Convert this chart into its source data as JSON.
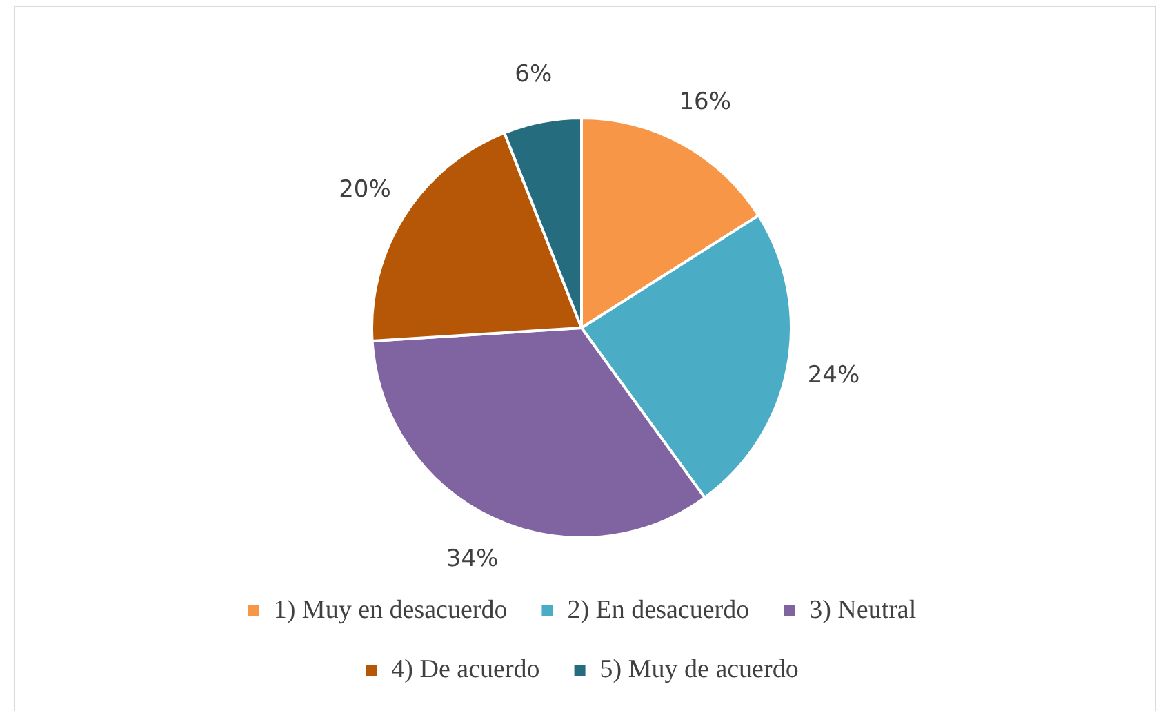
{
  "chart_data": {
    "type": "pie",
    "categories": [
      "1) Muy en desacuerdo",
      "2) En desacuerdo",
      "3) Neutral",
      "4) De acuerdo",
      "5) Muy de acuerdo"
    ],
    "values": [
      16,
      24,
      34,
      20,
      6
    ],
    "value_labels": [
      "16%",
      "24%",
      "34%",
      "20%",
      "6%"
    ],
    "colors": [
      "#f79646",
      "#4bacc6",
      "#8064a2",
      "#b65708",
      "#256c7e"
    ],
    "legend": "bottom"
  }
}
